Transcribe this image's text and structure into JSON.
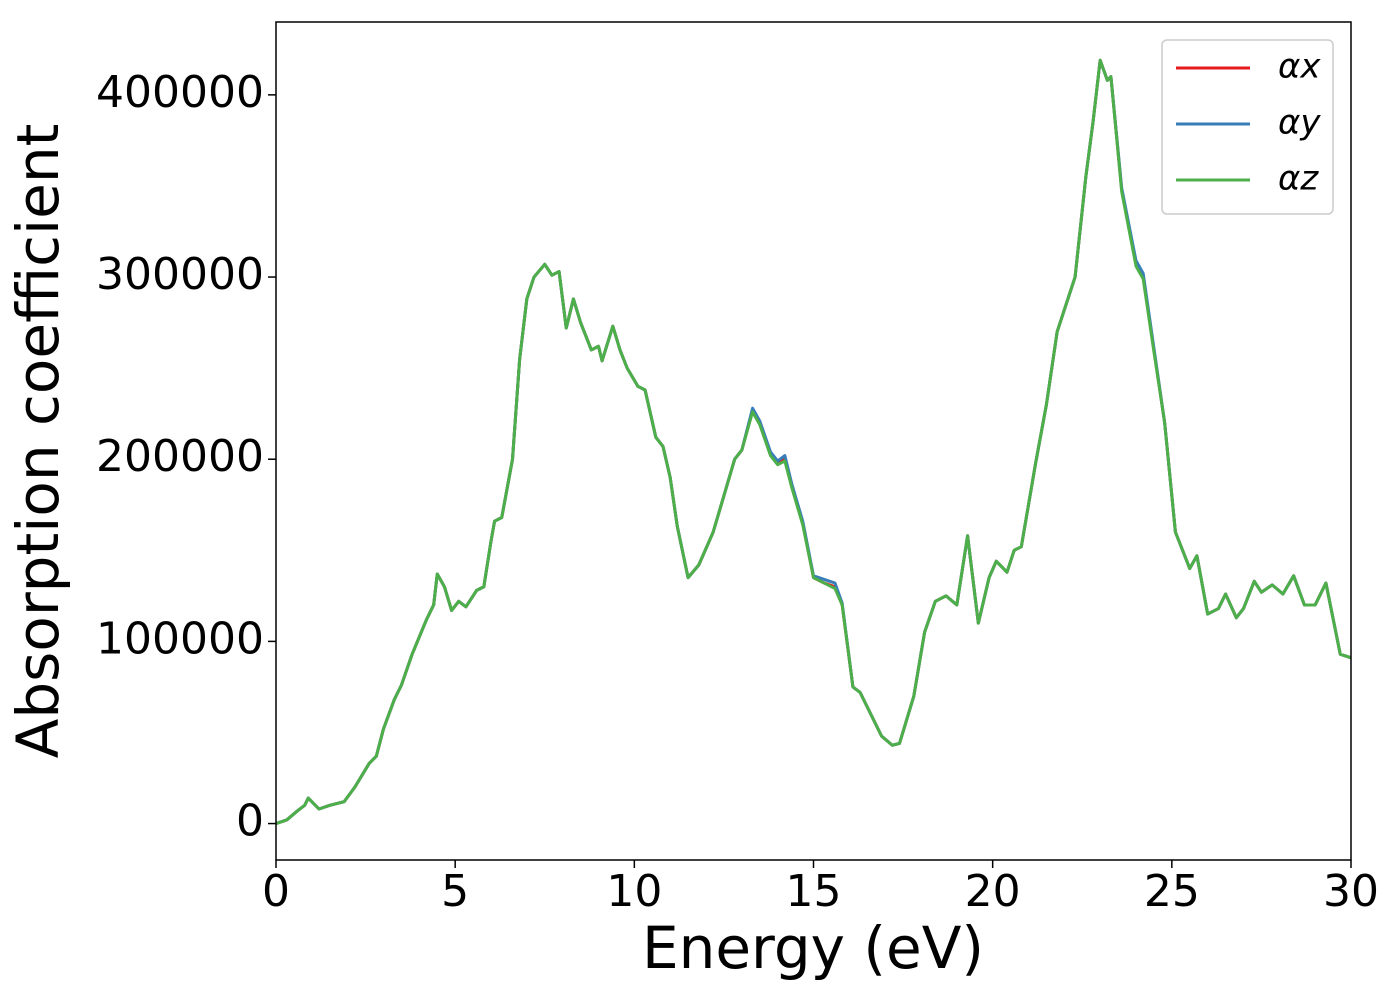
{
  "chart_data": {
    "type": "line",
    "xlabel": "Energy (eV)",
    "ylabel": "Absorption coefficient",
    "x": [
      0,
      0.3,
      0.6,
      0.8,
      0.9,
      1.0,
      1.2,
      1.5,
      1.9,
      2.2,
      2.6,
      2.8,
      3.0,
      3.3,
      3.5,
      3.8,
      4.2,
      4.4,
      4.5,
      4.7,
      4.9,
      5.1,
      5.3,
      5.6,
      5.8,
      6.0,
      6.1,
      6.3,
      6.6,
      6.8,
      7.0,
      7.2,
      7.5,
      7.7,
      7.9,
      8.1,
      8.3,
      8.5,
      8.8,
      9.0,
      9.1,
      9.4,
      9.6,
      9.8,
      10.1,
      10.3,
      10.6,
      10.8,
      11.0,
      11.2,
      11.5,
      11.8,
      12.2,
      12.5,
      12.8,
      13.0,
      13.3,
      13.5,
      13.8,
      14.0,
      14.2,
      14.4,
      14.7,
      15.0,
      15.3,
      15.6,
      15.8,
      16.1,
      16.3,
      16.6,
      16.9,
      17.2,
      17.4,
      17.8,
      18.1,
      18.4,
      18.7,
      19.0,
      19.3,
      19.6,
      19.9,
      20.1,
      20.4,
      20.6,
      20.8,
      21.2,
      21.5,
      21.8,
      22.1,
      22.3,
      22.6,
      22.8,
      23.0,
      23.2,
      23.3,
      23.6,
      24.0,
      24.2,
      24.5,
      24.8,
      25.1,
      25.5,
      25.7,
      26.0,
      26.3,
      26.5,
      26.8,
      27.0,
      27.3,
      27.5,
      27.8,
      28.1,
      28.4,
      28.7,
      29.0,
      29.3,
      29.7,
      30.0
    ],
    "series": [
      {
        "name": "αx",
        "color": "#e41a1c",
        "values": [
          0,
          2000,
          7000,
          10000,
          14000,
          12000,
          8000,
          10000,
          12000,
          20000,
          33000,
          37000,
          52000,
          68000,
          76000,
          93000,
          112000,
          120000,
          137000,
          130000,
          117000,
          122000,
          119000,
          128000,
          130000,
          155000,
          166000,
          168000,
          200000,
          255000,
          288000,
          300000,
          307000,
          301000,
          303000,
          272000,
          288000,
          275000,
          260000,
          262000,
          254000,
          273000,
          260000,
          250000,
          240000,
          238000,
          212000,
          207000,
          190000,
          163000,
          135000,
          142000,
          160000,
          180000,
          200000,
          205000,
          227000,
          220000,
          203000,
          198000,
          200000,
          185000,
          165000,
          135000,
          132000,
          130000,
          120000,
          75000,
          72000,
          60000,
          48000,
          43000,
          44000,
          70000,
          105000,
          122000,
          125000,
          120000,
          158000,
          110000,
          135000,
          144000,
          138000,
          150000,
          152000,
          198000,
          230000,
          270000,
          288000,
          300000,
          355000,
          385000,
          419000,
          408000,
          410000,
          348000,
          307000,
          300000,
          260000,
          220000,
          160000,
          140000,
          147000,
          115000,
          118000,
          126000,
          113000,
          118000,
          133000,
          127000,
          131000,
          126000,
          136000,
          120000,
          120000,
          132000,
          93000,
          91000
        ]
      },
      {
        "name": "αy",
        "color": "#377eb8",
        "values": [
          0,
          2000,
          7000,
          10000,
          14000,
          12000,
          8000,
          10000,
          12000,
          20000,
          33000,
          37000,
          52000,
          68000,
          76000,
          93000,
          112000,
          120000,
          137000,
          130000,
          117000,
          122000,
          119000,
          128000,
          130000,
          155000,
          166000,
          168000,
          200000,
          255000,
          288000,
          300000,
          307000,
          301000,
          303000,
          272000,
          288000,
          275000,
          260000,
          262000,
          254000,
          273000,
          260000,
          250000,
          240000,
          238000,
          212000,
          207000,
          190000,
          163000,
          135000,
          142000,
          160000,
          180000,
          200000,
          205000,
          228000,
          221000,
          204000,
          199000,
          202000,
          186000,
          166000,
          136000,
          134000,
          132000,
          121000,
          75000,
          72000,
          60000,
          48000,
          43000,
          44000,
          70000,
          105000,
          122000,
          125000,
          120000,
          158000,
          110000,
          135000,
          144000,
          138000,
          150000,
          152000,
          198000,
          230000,
          270000,
          288000,
          300000,
          355000,
          385000,
          419000,
          408000,
          410000,
          349000,
          309000,
          302000,
          261000,
          220000,
          160000,
          140000,
          147000,
          115000,
          118000,
          126000,
          113000,
          118000,
          133000,
          127000,
          131000,
          126000,
          136000,
          120000,
          120000,
          132000,
          93000,
          91000
        ]
      },
      {
        "name": "αz",
        "color": "#4daf4a",
        "values": [
          0,
          2000,
          7000,
          10000,
          14000,
          12000,
          8000,
          10000,
          12000,
          20000,
          33000,
          37000,
          52000,
          68000,
          76000,
          93000,
          112000,
          120000,
          137000,
          130000,
          117000,
          122000,
          119000,
          128000,
          130000,
          155000,
          166000,
          168000,
          200000,
          255000,
          288000,
          300000,
          307000,
          301000,
          303000,
          272000,
          288000,
          275000,
          260000,
          262000,
          254000,
          273000,
          260000,
          250000,
          240000,
          238000,
          212000,
          207000,
          190000,
          163000,
          135000,
          142000,
          160000,
          180000,
          200000,
          205000,
          226000,
          219000,
          202000,
          197000,
          199000,
          184000,
          164000,
          135000,
          132000,
          129000,
          120000,
          75000,
          72000,
          60000,
          48000,
          43000,
          44000,
          70000,
          105000,
          122000,
          125000,
          120000,
          158000,
          110000,
          135000,
          144000,
          138000,
          150000,
          152000,
          198000,
          230000,
          270000,
          288000,
          300000,
          355000,
          385000,
          419000,
          408000,
          410000,
          347000,
          306000,
          299000,
          259000,
          220000,
          160000,
          140000,
          147000,
          115000,
          118000,
          126000,
          113000,
          118000,
          133000,
          127000,
          131000,
          126000,
          136000,
          120000,
          120000,
          132000,
          93000,
          91000
        ]
      }
    ],
    "xlim": [
      0,
      30
    ],
    "xticks": [
      0,
      5,
      10,
      15,
      20,
      25,
      30
    ],
    "ylim": [
      -20000,
      440000
    ],
    "yticks": [
      0,
      100000,
      200000,
      300000,
      400000
    ],
    "grid": false,
    "legend": "upper right"
  }
}
